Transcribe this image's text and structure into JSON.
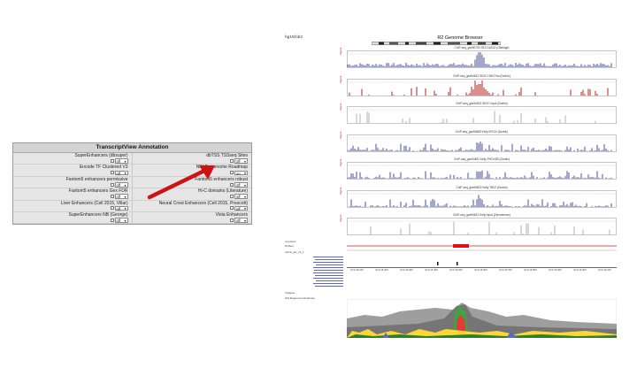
{
  "annotation": {
    "title": "TranscriptView Annotation",
    "items": [
      {
        "label": "SuperEnhancers (dbsuper)",
        "value": "off"
      },
      {
        "label": "dbTSS TSSseq Sites",
        "value": "off"
      },
      {
        "label": "Encode TF Clustered V3",
        "value": "off"
      },
      {
        "label": "NIH Epigenome Roadmap",
        "value": "on"
      },
      {
        "label": "Fantom5 enhancers permissive",
        "value": "off"
      },
      {
        "label": "Fantom5 enhancers robust",
        "value": "off"
      },
      {
        "label": "Fantom5 enhancers Gex FDR",
        "value": "off"
      },
      {
        "label": "Hi-C domains (Literature)",
        "value": "off"
      },
      {
        "label": "Liver Enhancers (Cell 2015, Villar)",
        "value": "off"
      },
      {
        "label": "Neural Crest Enhancers (Cell 2015, Prescott)",
        "value": "off"
      },
      {
        "label": "SuperEnhancers NB (George)",
        "value": "off"
      },
      {
        "label": "Vista Enhancers",
        "value": "off"
      }
    ]
  },
  "browser": {
    "assembly": "hg19/nb2",
    "title": "R2 Genome Browser",
    "y_label": "Signal",
    "tracks": [
      {
        "label": "ChIP-seq_gse90792 SE2 GATA2 (Oldridge)",
        "color": "#1a237e"
      },
      {
        "label": "ChIP-seq_gse94822 SE2C H3K27ac (Durbin)",
        "color": "#b71c1c"
      },
      {
        "label": "ChIP-seq_gse94822 SE2C input (Durbin)",
        "color": "#9e9e9e"
      },
      {
        "label": "ChIP-seq_gse90683 Kelly MYCN (Durbin)",
        "color": "#1a237e"
      },
      {
        "label": "ChIP-seq_gse94822 Kelly PHOX2B (Durbin)",
        "color": "#1a237e"
      },
      {
        "label": "ChIP-seq_gse94822 Kelly TBX2 (Durbin)",
        "color": "#1a237e"
      },
      {
        "label": "ChIP-seq_gse94822 Kelly input (Zimmerman)",
        "color": "#9e9e9e"
      }
    ],
    "ticks": [
      "chr2:15,100",
      "chr2:15,200",
      "chr2:15,300",
      "chr2:15,400",
      "chr2:15,500",
      "chr2:15,600",
      "chr2:15,700",
      "chr2:15,800",
      "chr2:15,900",
      "chr2:16,000",
      "chr2:16,100"
    ],
    "side_labels": [
      "Cytoband",
      "RefSeq",
      "nbr19_gsc_nb_1"
    ],
    "bottom_labels": [
      "Vistapea",
      "NIH Epigenome Roadmap"
    ]
  }
}
